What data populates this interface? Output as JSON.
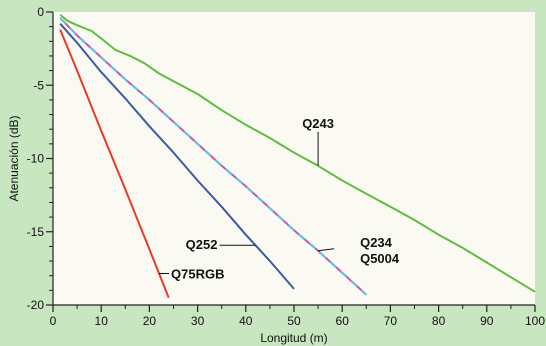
{
  "chart_data": {
    "type": "line",
    "xlabel": "Longitud (m)",
    "ylabel": "Atenuación (dB)",
    "xlim": [
      0,
      100
    ],
    "ylim": [
      -20,
      0
    ],
    "x_ticks": [
      0,
      10,
      20,
      30,
      40,
      50,
      60,
      70,
      80,
      90,
      100
    ],
    "y_ticks": [
      0,
      -5,
      -10,
      -15,
      -20
    ],
    "grid": false,
    "colors": {
      "plot_background": "#fafaf2",
      "page_background": "#c8e6c0",
      "axis": "#222222"
    },
    "series": [
      {
        "name": "Q243",
        "color": "#5cbf3c",
        "points": [
          [
            1.5,
            -0.2
          ],
          [
            3,
            -0.6
          ],
          [
            5,
            -0.9
          ],
          [
            8,
            -1.3
          ],
          [
            10,
            -1.8
          ],
          [
            13,
            -2.6
          ],
          [
            16,
            -3.0
          ],
          [
            19,
            -3.5
          ],
          [
            22,
            -4.2
          ],
          [
            26,
            -4.9
          ],
          [
            30,
            -5.6
          ],
          [
            35,
            -6.7
          ],
          [
            40,
            -7.7
          ],
          [
            45,
            -8.6
          ],
          [
            50,
            -9.6
          ],
          [
            55,
            -10.5
          ],
          [
            60,
            -11.5
          ],
          [
            65,
            -12.4
          ],
          [
            70,
            -13.3
          ],
          [
            75,
            -14.2
          ],
          [
            80,
            -15.2
          ],
          [
            85,
            -16.1
          ],
          [
            90,
            -17.1
          ],
          [
            95,
            -18.1
          ],
          [
            100,
            -19.1
          ]
        ]
      },
      {
        "name": "Q234",
        "color": "#cc55aa",
        "points": [
          [
            1.5,
            -0.4
          ],
          [
            5,
            -1.6
          ],
          [
            10,
            -3.1
          ],
          [
            15,
            -4.6
          ],
          [
            20,
            -6.0
          ],
          [
            25,
            -7.5
          ],
          [
            30,
            -9.0
          ],
          [
            35,
            -10.5
          ],
          [
            40,
            -11.9
          ],
          [
            45,
            -13.4
          ],
          [
            50,
            -14.9
          ],
          [
            55,
            -16.3
          ],
          [
            60,
            -17.8
          ],
          [
            65,
            -19.3
          ]
        ]
      },
      {
        "name": "Q5004",
        "color": "#55c8e8",
        "points": [
          [
            1.5,
            -0.4
          ],
          [
            5,
            -1.6
          ],
          [
            10,
            -3.1
          ],
          [
            15,
            -4.6
          ],
          [
            20,
            -6.0
          ],
          [
            25,
            -7.5
          ],
          [
            30,
            -9.0
          ],
          [
            35,
            -10.5
          ],
          [
            40,
            -11.9
          ],
          [
            45,
            -13.4
          ],
          [
            50,
            -14.9
          ],
          [
            55,
            -16.3
          ],
          [
            60,
            -17.8
          ],
          [
            65,
            -19.3
          ]
        ]
      },
      {
        "name": "Q252",
        "color": "#3a5aa8",
        "points": [
          [
            1.5,
            -0.8
          ],
          [
            5,
            -2.1
          ],
          [
            10,
            -4.1
          ],
          [
            15,
            -5.9
          ],
          [
            20,
            -7.8
          ],
          [
            25,
            -9.6
          ],
          [
            30,
            -11.5
          ],
          [
            35,
            -13.3
          ],
          [
            40,
            -15.2
          ],
          [
            45,
            -17.0
          ],
          [
            50,
            -18.9
          ]
        ]
      },
      {
        "name": "Q75RGB",
        "color": "#e83a2a",
        "points": [
          [
            1.5,
            -1.2
          ],
          [
            5,
            -4.0
          ],
          [
            10,
            -8.1
          ],
          [
            15,
            -12.1
          ],
          [
            20,
            -16.2
          ],
          [
            24,
            -19.5
          ]
        ]
      }
    ],
    "annotations": [
      {
        "text": "Q243",
        "series": "Q243",
        "at_x": 55
      },
      {
        "text": "Q234",
        "series": "Q234",
        "at_x": 55
      },
      {
        "text": "Q5004",
        "series": "Q5004",
        "at_x": 55
      },
      {
        "text": "Q252",
        "series": "Q252",
        "at_x": 42
      },
      {
        "text": "Q75RGB",
        "series": "Q75RGB",
        "at_x": 22
      }
    ]
  }
}
